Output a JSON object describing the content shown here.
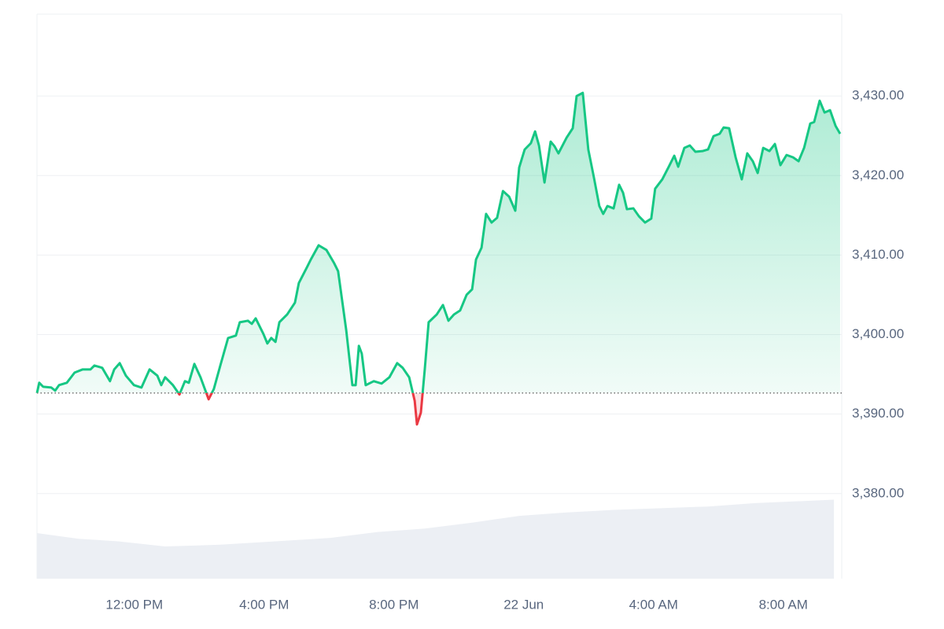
{
  "chart_data": {
    "type": "line",
    "x": [
      9.0,
      9.07,
      9.19,
      9.44,
      9.56,
      9.68,
      9.92,
      10.16,
      10.41,
      10.65,
      10.77,
      11.01,
      11.25,
      11.38,
      11.55,
      11.74,
      11.99,
      12.22,
      12.47,
      12.71,
      12.83,
      12.95,
      13.07,
      13.19,
      13.39,
      13.56,
      13.68,
      13.85,
      14.04,
      14.29,
      14.45,
      14.65,
      14.89,
      15.13,
      15.25,
      15.5,
      15.62,
      15.74,
      15.98,
      16.1,
      16.22,
      16.35,
      16.47,
      16.71,
      16.95,
      17.07,
      17.32,
      17.44,
      17.68,
      17.92,
      18.16,
      18.28,
      18.53,
      18.72,
      18.82,
      18.92,
      19.01,
      19.13,
      19.38,
      19.62,
      19.86,
      20.1,
      20.27,
      20.47,
      20.64,
      20.71,
      20.83,
      20.95,
      21.07,
      21.32,
      21.51,
      21.68,
      21.85,
      22.04,
      22.24,
      22.41,
      22.53,
      22.7,
      22.84,
      23.01,
      23.18,
      23.36,
      23.55,
      23.74,
      23.86,
      24.03,
      24.22,
      24.35,
      24.47,
      24.64,
      24.83,
      24.95,
      25.07,
      25.32,
      25.51,
      25.63,
      25.82,
      25.99,
      26.16,
      26.33,
      26.45,
      26.58,
      26.77,
      26.94,
      27.06,
      27.18,
      27.38,
      27.55,
      27.74,
      27.93,
      28.05,
      28.27,
      28.47,
      28.64,
      28.76,
      28.95,
      29.12,
      29.29,
      29.51,
      29.68,
      29.85,
      30.04,
      30.16,
      30.33,
      30.53,
      30.72,
      30.89,
      31.06,
      31.21,
      31.38,
      31.57,
      31.74,
      31.91,
      32.1,
      32.3,
      32.47,
      32.64,
      32.83,
      32.95,
      33.12,
      33.27,
      33.44,
      33.61,
      33.75
    ],
    "values": [
      3392.65,
      3393.94,
      3393.44,
      3393.34,
      3392.95,
      3393.64,
      3393.94,
      3395.22,
      3395.62,
      3395.62,
      3396.11,
      3395.82,
      3394.14,
      3395.62,
      3396.41,
      3394.83,
      3393.64,
      3393.34,
      3395.62,
      3394.83,
      3393.64,
      3394.63,
      3394.14,
      3393.64,
      3392.46,
      3394.14,
      3393.94,
      3396.31,
      3394.63,
      3391.86,
      3393.15,
      3396.11,
      3399.57,
      3399.87,
      3401.55,
      3401.74,
      3401.35,
      3402.04,
      3400.06,
      3398.88,
      3399.57,
      3399.08,
      3401.55,
      3402.53,
      3404.02,
      3406.49,
      3408.46,
      3409.45,
      3411.23,
      3410.64,
      3408.96,
      3407.97,
      3400.56,
      3393.64,
      3393.64,
      3398.58,
      3397.59,
      3393.64,
      3394.14,
      3393.84,
      3394.63,
      3396.41,
      3395.82,
      3394.63,
      3391.67,
      3388.7,
      3390.18,
      3395.62,
      3401.55,
      3402.53,
      3403.72,
      3401.74,
      3402.53,
      3403.03,
      3405.0,
      3405.7,
      3409.45,
      3410.93,
      3415.18,
      3414.09,
      3414.69,
      3418.05,
      3417.35,
      3415.58,
      3421.01,
      3423.28,
      3424.07,
      3425.55,
      3423.78,
      3419.13,
      3424.27,
      3423.68,
      3422.79,
      3424.76,
      3425.95,
      3430.0,
      3430.4,
      3423.28,
      3419.82,
      3416.17,
      3415.18,
      3416.17,
      3415.87,
      3418.84,
      3417.85,
      3415.77,
      3415.87,
      3414.88,
      3414.09,
      3414.59,
      3418.34,
      3419.53,
      3421.11,
      3422.49,
      3421.11,
      3423.48,
      3423.78,
      3422.99,
      3423.08,
      3423.28,
      3424.96,
      3425.26,
      3426.05,
      3425.95,
      3422.29,
      3419.53,
      3422.79,
      3421.8,
      3420.32,
      3423.48,
      3423.08,
      3423.97,
      3421.31,
      3422.59,
      3422.29,
      3421.8,
      3423.48,
      3426.54,
      3426.74,
      3429.41,
      3427.93,
      3428.22,
      3426.25,
      3425.26
    ],
    "color": "#16c784",
    "below_color": "#ea3943",
    "baseline": 3392.65,
    "xlim": [
      9,
      33.8
    ],
    "ylim": [
      3369.3,
      3440.3
    ],
    "xticks": [
      {
        "value": 12,
        "label": "12:00 PM"
      },
      {
        "value": 16,
        "label": "4:00 PM"
      },
      {
        "value": 20,
        "label": "8:00 PM"
      },
      {
        "value": 24,
        "label": "22 Jun"
      },
      {
        "value": 28,
        "label": "4:00 AM"
      },
      {
        "value": 32,
        "label": "8:00 AM"
      }
    ],
    "yticks": [
      {
        "value": 3380,
        "label": "3,380.00"
      },
      {
        "value": 3390,
        "label": "3,390.00"
      },
      {
        "value": 3400,
        "label": "3,400.00"
      },
      {
        "value": 3410,
        "label": "3,410.00"
      },
      {
        "value": 3420,
        "label": "3,420.00"
      },
      {
        "value": 3430,
        "label": "3,430.00"
      }
    ],
    "grid": true,
    "volume": {
      "axis": "y2",
      "color": "#eceff4",
      "x": [
        9.0,
        10.28,
        11.5,
        12.95,
        14.65,
        16.35,
        18.04,
        19.5,
        20.95,
        22.41,
        23.86,
        25.32,
        26.77,
        28.22,
        29.68,
        31.13,
        33.56
      ],
      "values": [
        53.7,
        47,
        44,
        38,
        40,
        44,
        48,
        55,
        59,
        66,
        74,
        78,
        81,
        83,
        85,
        89,
        93
      ]
    },
    "y2lim": [
      0,
      100
    ]
  }
}
